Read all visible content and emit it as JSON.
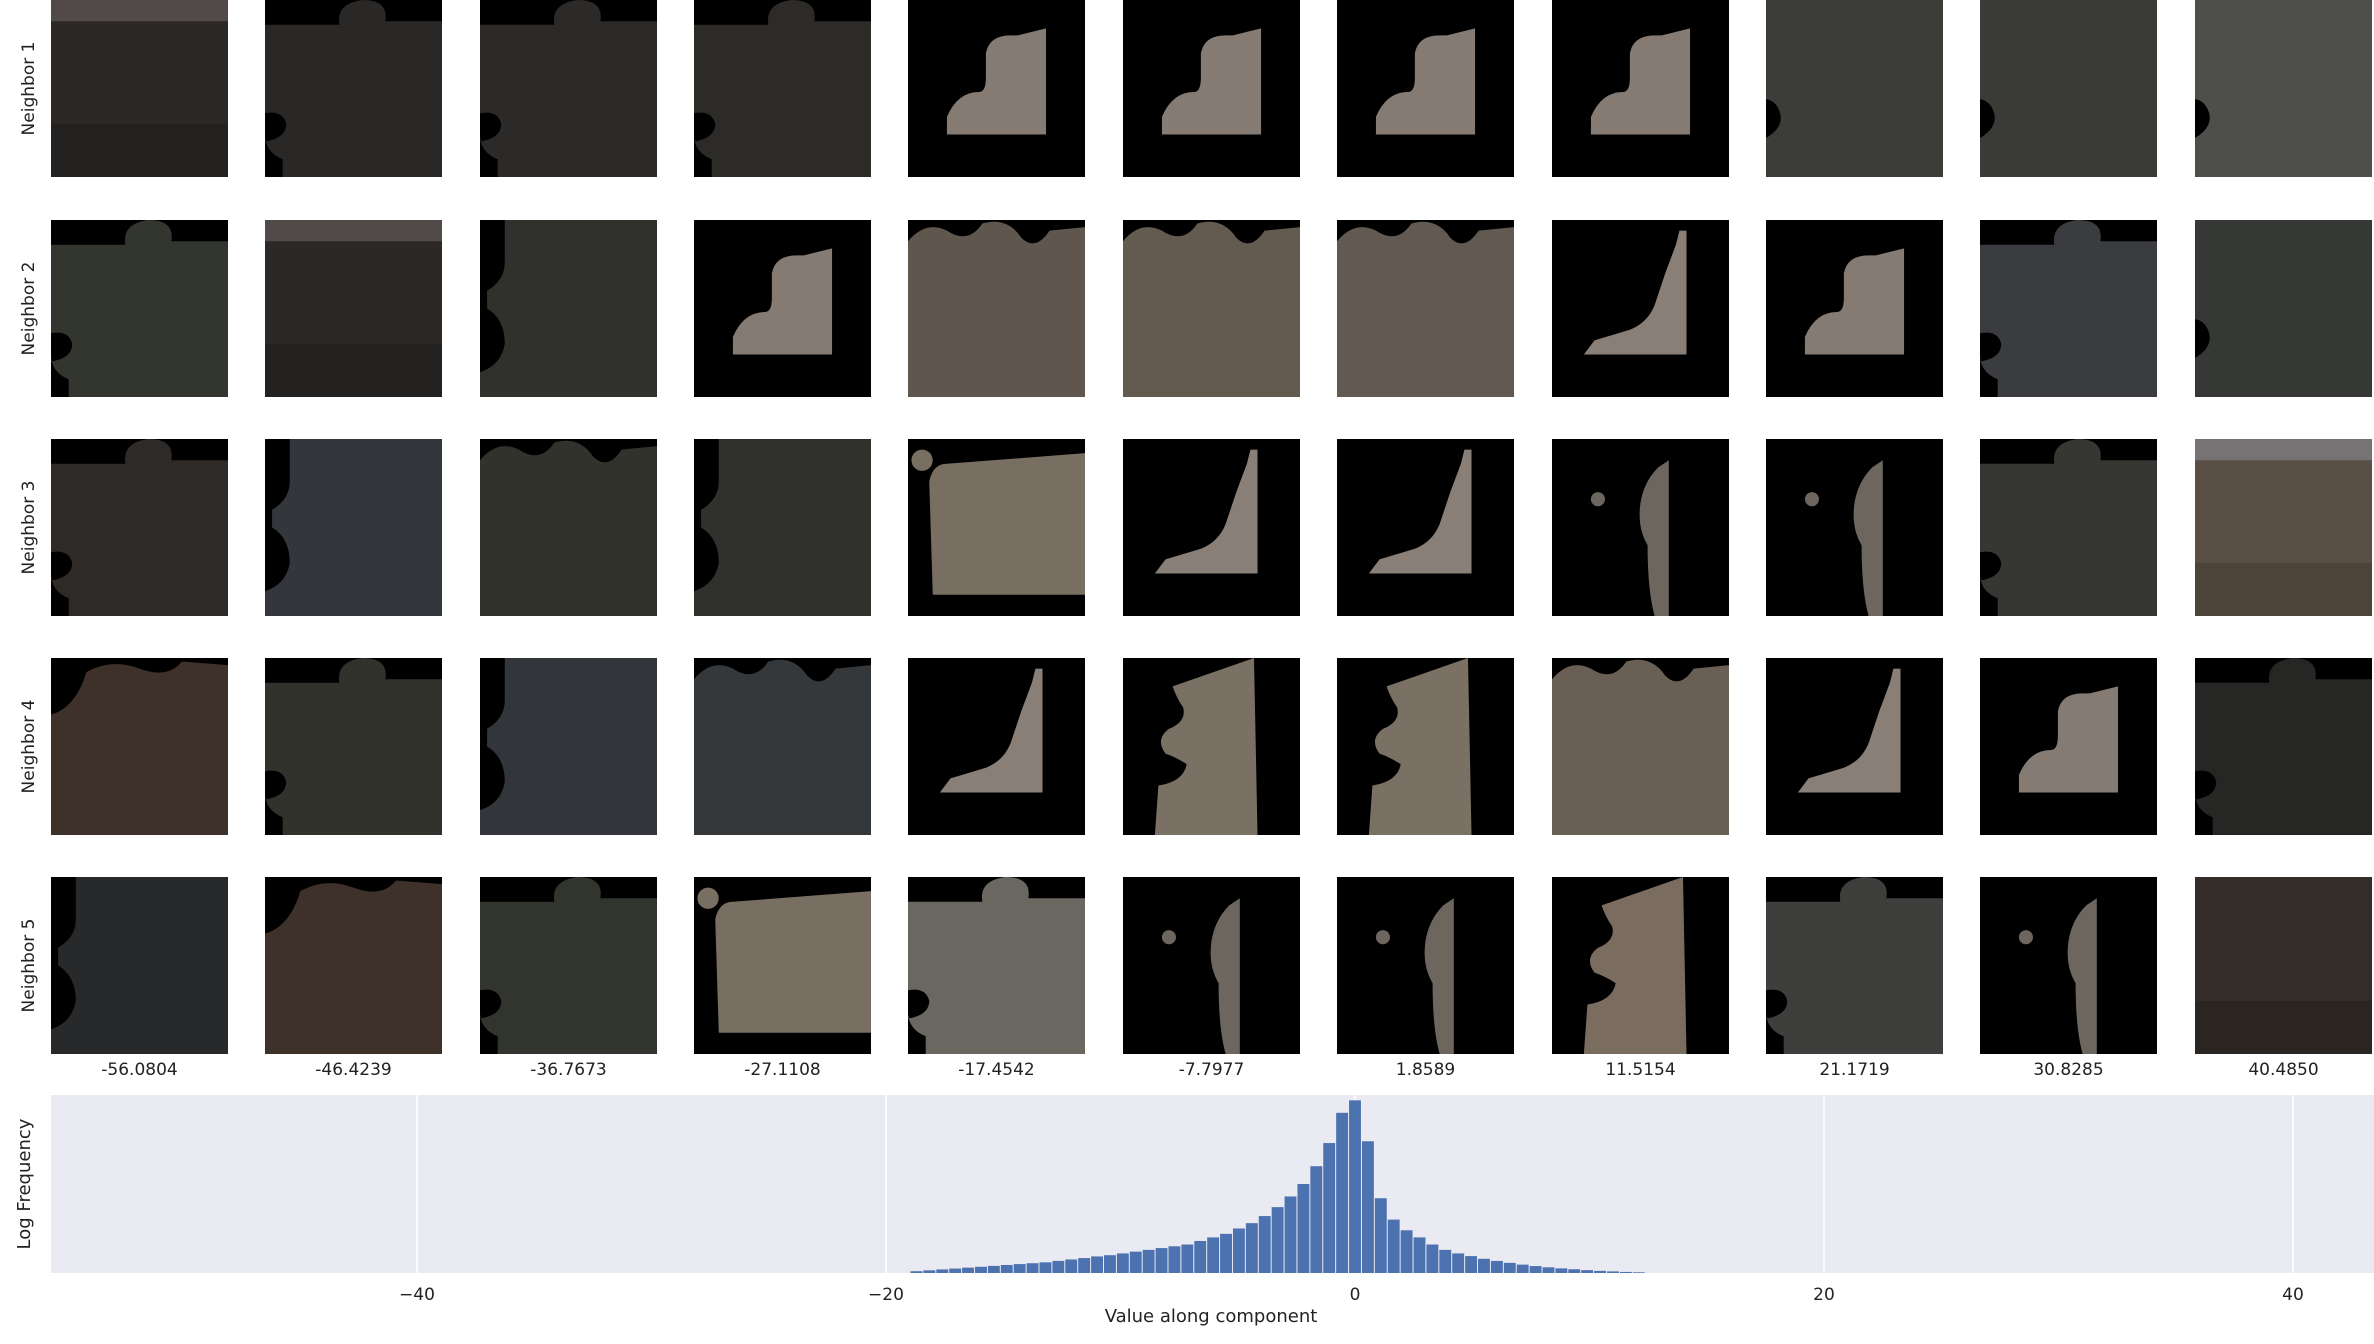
{
  "row_labels": [
    "Neighbor 1",
    "Neighbor 2",
    "Neighbor 3",
    "Neighbor 4",
    "Neighbor 5"
  ],
  "column_values": [
    "-56.0804",
    "-46.4239",
    "-36.7673",
    "-27.1108",
    "-17.4542",
    "-7.7977",
    "1.8589",
    "11.5154",
    "21.1719",
    "30.8285",
    "40.4850"
  ],
  "patches": [
    [
      {
        "shape": "full-blurry",
        "fill": "#2b2826",
        "highlight": "#6b6060"
      },
      {
        "shape": "blob-star",
        "fill": "#2a2826"
      },
      {
        "shape": "blob-star",
        "fill": "#2c2a28"
      },
      {
        "shape": "blob-star",
        "fill": "#2d2b28"
      },
      {
        "shape": "quarter-L",
        "fill": "#857b72"
      },
      {
        "shape": "quarter-L",
        "fill": "#857b72"
      },
      {
        "shape": "quarter-L",
        "fill": "#857b72"
      },
      {
        "shape": "quarter-L",
        "fill": "#857b72"
      },
      {
        "shape": "full-notch",
        "fill": "#3c3c39"
      },
      {
        "shape": "full-notch",
        "fill": "#3a3a37"
      },
      {
        "shape": "full-notch",
        "fill": "#4e4f4b"
      }
    ],
    [
      {
        "shape": "blob-star",
        "fill": "#33352f"
      },
      {
        "shape": "full-blurry",
        "fill": "#2b2826",
        "highlight": "#6b6060"
      },
      {
        "shape": "blob-side",
        "fill": "#30302c"
      },
      {
        "shape": "quarter-L",
        "fill": "#857b72"
      },
      {
        "shape": "blob-bumps",
        "fill": "#5f574e"
      },
      {
        "shape": "blob-bumps",
        "fill": "#635a50"
      },
      {
        "shape": "blob-bumps",
        "fill": "#625a51"
      },
      {
        "shape": "ramp",
        "fill": "#897f77"
      },
      {
        "shape": "quarter-L",
        "fill": "#857b72"
      },
      {
        "shape": "blob-star",
        "fill": "#3b3c3f"
      },
      {
        "shape": "full-notch",
        "fill": "#363835"
      }
    ],
    [
      {
        "shape": "blob-star",
        "fill": "#2d2a27"
      },
      {
        "shape": "blob-side",
        "fill": "#33363a"
      },
      {
        "shape": "blob-bumps",
        "fill": "#32322c"
      },
      {
        "shape": "blob-side",
        "fill": "#30302c"
      },
      {
        "shape": "box-dot",
        "fill": "#796e62"
      },
      {
        "shape": "ramp",
        "fill": "#897f77"
      },
      {
        "shape": "ramp",
        "fill": "#897f77"
      },
      {
        "shape": "sliver",
        "fill": "#6c665e"
      },
      {
        "shape": "sliver",
        "fill": "#6c665e"
      },
      {
        "shape": "blob-star",
        "fill": "#363633"
      },
      {
        "shape": "full-blurry",
        "fill": "#5a4f44",
        "highlight": "#8b8a93"
      }
    ],
    [
      {
        "shape": "blob-brown",
        "fill": "#3d3129"
      },
      {
        "shape": "blob-star",
        "fill": "#30322b"
      },
      {
        "shape": "blob-side",
        "fill": "#32353a"
      },
      {
        "shape": "blob-bumps",
        "fill": "#35383b"
      },
      {
        "shape": "ramp",
        "fill": "#897f77"
      },
      {
        "shape": "hole",
        "fill": "#7a7064"
      },
      {
        "shape": "hole",
        "fill": "#7a7064"
      },
      {
        "shape": "blob-bumps",
        "fill": "#6a5f55"
      },
      {
        "shape": "ramp",
        "fill": "#897f77"
      },
      {
        "shape": "quarter-L",
        "fill": "#857b72"
      },
      {
        "shape": "blob-star",
        "fill": "#262624"
      }
    ],
    [
      {
        "shape": "blob-side",
        "fill": "#28292a"
      },
      {
        "shape": "blob-brown",
        "fill": "#3d3129"
      },
      {
        "shape": "blob-star",
        "fill": "#31352d"
      },
      {
        "shape": "box-dot",
        "fill": "#796e62"
      },
      {
        "shape": "blob-star",
        "fill": "#6a6660"
      },
      {
        "shape": "sliver",
        "fill": "#6c665e"
      },
      {
        "shape": "sliver",
        "fill": "#6c665e"
      },
      {
        "shape": "hole",
        "fill": "#7a6c5f"
      },
      {
        "shape": "blob-star",
        "fill": "#3e3e3c"
      },
      {
        "shape": "sliver",
        "fill": "#6c665e"
      },
      {
        "shape": "full-blurry",
        "fill": "#332c28"
      }
    ]
  ],
  "chart_data": {
    "type": "bar",
    "ylabel": "Log Frequency",
    "xlabel": "Value along component",
    "xlim": [
      -56.0804,
      44
    ],
    "xticks": [
      -40,
      -20,
      0,
      20,
      40
    ],
    "xtick_labels": [
      "−40",
      "−20",
      "0",
      "20",
      "40"
    ],
    "grid": true,
    "bin_width": 0.55,
    "bin_centers": [
      -18.7,
      -18.15,
      -17.6,
      -17.05,
      -16.5,
      -15.95,
      -15.4,
      -14.85,
      -14.3,
      -13.75,
      -13.2,
      -12.65,
      -12.1,
      -11.55,
      -11.0,
      -10.45,
      -9.9,
      -9.35,
      -8.8,
      -8.25,
      -7.7,
      -7.15,
      -6.6,
      -6.05,
      -5.5,
      -4.95,
      -4.4,
      -3.85,
      -3.3,
      -2.75,
      -2.2,
      -1.65,
      -1.1,
      -0.55,
      0.0,
      0.55,
      1.1,
      1.65,
      2.2,
      2.75,
      3.3,
      3.85,
      4.4,
      4.95,
      5.5,
      6.05,
      6.6,
      7.15,
      7.7,
      8.25,
      8.8,
      9.35,
      9.9,
      10.45,
      11.0,
      11.55,
      12.1
    ],
    "values": [
      0.01,
      0.015,
      0.02,
      0.025,
      0.03,
      0.035,
      0.04,
      0.045,
      0.05,
      0.055,
      0.06,
      0.068,
      0.076,
      0.084,
      0.093,
      0.1,
      0.11,
      0.12,
      0.13,
      0.14,
      0.15,
      0.16,
      0.18,
      0.2,
      0.22,
      0.25,
      0.28,
      0.32,
      0.37,
      0.43,
      0.5,
      0.6,
      0.73,
      0.9,
      0.97,
      0.74,
      0.42,
      0.3,
      0.24,
      0.2,
      0.16,
      0.13,
      0.11,
      0.095,
      0.08,
      0.068,
      0.057,
      0.047,
      0.039,
      0.032,
      0.026,
      0.021,
      0.016,
      0.012,
      0.009,
      0.006,
      0.004
    ],
    "ylim": [
      0,
      1.0
    ],
    "bar_color": "#4c72b0",
    "background_color": "#eaeaf2"
  }
}
